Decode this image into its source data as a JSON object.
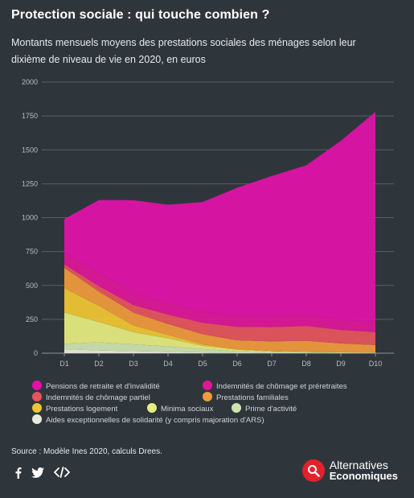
{
  "header": {
    "title": "Protection sociale : qui touche combien ?",
    "subtitle": "Montants mensuels moyens des prestations sociales des ménages selon leur dixième de niveau de vie en 2020, en euros"
  },
  "chart_data": {
    "type": "area",
    "stacked": true,
    "categories": [
      "D1",
      "D2",
      "D3",
      "D4",
      "D5",
      "D6",
      "D7",
      "D8",
      "D9",
      "D10"
    ],
    "ylim": [
      0,
      2000
    ],
    "yticks": [
      0,
      250,
      500,
      750,
      1000,
      1250,
      1500,
      1750,
      2000
    ],
    "grid": true,
    "legend_position": "bottom",
    "series": [
      {
        "name": "Aides exceptionnelles de solidarité (y compris majoration d'ARS)",
        "color": "#e9ecdd",
        "values": [
          30,
          20,
          15,
          10,
          5,
          3,
          2,
          2,
          1,
          1
        ]
      },
      {
        "name": "Prime d'activité",
        "color": "#cfe3b0",
        "values": [
          40,
          60,
          50,
          40,
          25,
          12,
          6,
          3,
          2,
          1
        ]
      },
      {
        "name": "Minima sociaux",
        "color": "#e6ec7f",
        "values": [
          230,
          150,
          90,
          60,
          25,
          10,
          6,
          4,
          3,
          2
        ]
      },
      {
        "name": "Prestations logement",
        "color": "#f0c633",
        "values": [
          180,
          120,
          50,
          25,
          10,
          5,
          3,
          2,
          1,
          1
        ]
      },
      {
        "name": "Prestations familiales",
        "color": "#f19a3c",
        "values": [
          150,
          105,
          95,
          80,
          75,
          65,
          70,
          80,
          65,
          55
        ]
      },
      {
        "name": "Indemnités de chômage partiel",
        "color": "#e7545d",
        "values": [
          25,
          40,
          55,
          70,
          85,
          100,
          105,
          110,
          100,
          95
        ]
      },
      {
        "name": "Indemnités de chômage et préretraites",
        "color": "#e0169a",
        "values": [
          85,
          100,
          95,
          85,
          80,
          85,
          85,
          85,
          75,
          75
        ]
      },
      {
        "name": "Pensions de retraite et d'invalidité",
        "color": "#e211a9",
        "values": [
          250,
          535,
          678,
          725,
          810,
          940,
          1030,
          1100,
          1320,
          1550
        ]
      }
    ]
  },
  "legend": [
    {
      "label": "Pensions de retraite et d'invalidité",
      "color": "#e211a9"
    },
    {
      "label": "Indemnités de chômage et préretraites",
      "color": "#e0169a"
    },
    {
      "label": "Indemnités de chômage partiel",
      "color": "#e7545d"
    },
    {
      "label": "Prestations familiales",
      "color": "#f19a3c"
    },
    {
      "label": "Prestations logement",
      "color": "#f0c633"
    },
    {
      "label": "Minima sociaux",
      "color": "#e6ec7f"
    },
    {
      "label": "Prime d'activité",
      "color": "#cfe3b0"
    },
    {
      "label": "Aides exceptionnelles de solidarité (y compris majoration d'ARS)",
      "color": "#e9ecdd"
    }
  ],
  "footer": {
    "source": "Source : Modèle Ines 2020, calculs Drees.",
    "brand_line1": "Alternatives",
    "brand_line2": "Economiques",
    "social_icons": [
      "facebook-icon",
      "twitter-icon",
      "embed-code-icon"
    ]
  }
}
